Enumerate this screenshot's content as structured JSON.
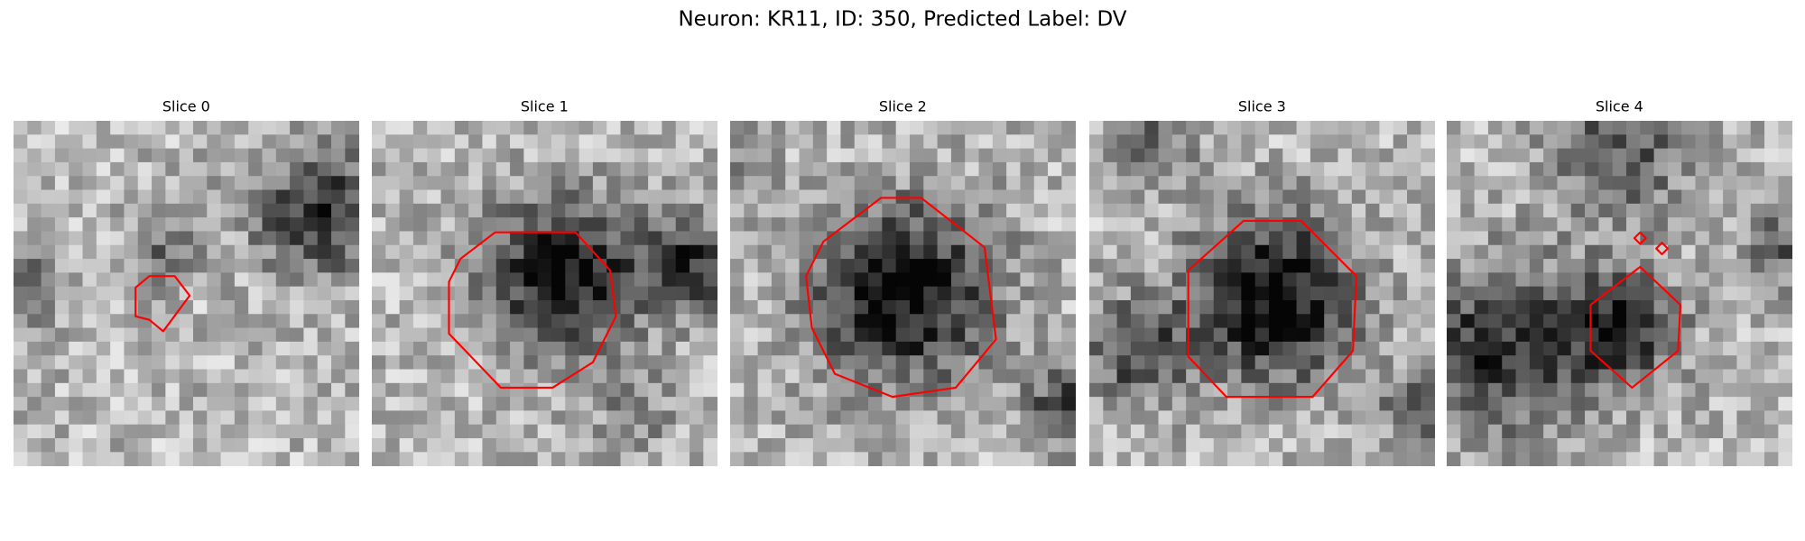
{
  "title": "Neuron: KR11, ID: 350, Predicted Label: DV",
  "panels": [
    {
      "title": "Slice 0"
    },
    {
      "title": "Slice 1"
    },
    {
      "title": "Slice 2"
    },
    {
      "title": "Slice 3"
    },
    {
      "title": "Slice 4"
    }
  ]
}
